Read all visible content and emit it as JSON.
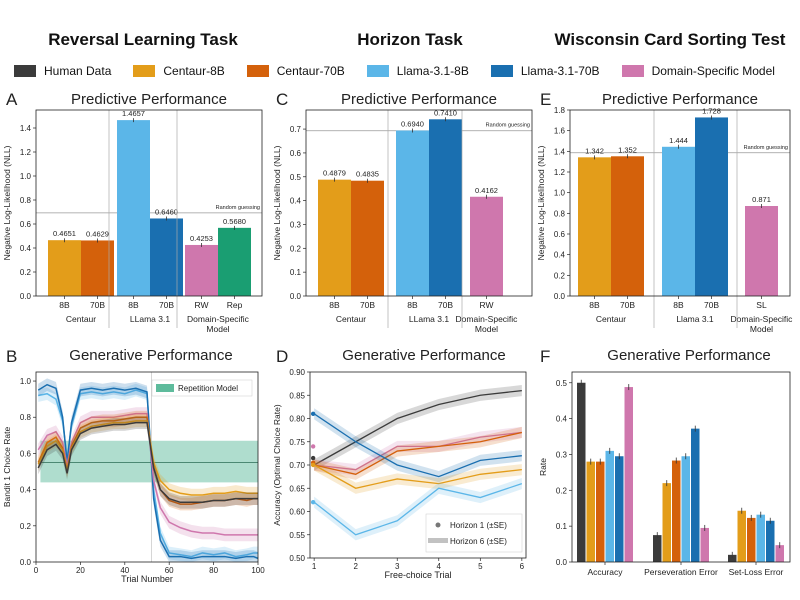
{
  "task_titles": [
    "Reversal Learning Task",
    "Horizon Task",
    "Wisconsin Card Sorting Test"
  ],
  "legend": [
    {
      "label": "Human Data",
      "color": "#3b3b3b"
    },
    {
      "label": "Centaur-8B",
      "color": "#e39d1a"
    },
    {
      "label": "Centaur-70B",
      "color": "#d4610b"
    },
    {
      "label": "Llama-3.1-8B",
      "color": "#5bb6e8"
    },
    {
      "label": "Llama-3.1-70B",
      "color": "#1a6fb0"
    },
    {
      "label": "Domain-Specific Model",
      "color": "#cf77ad"
    }
  ],
  "colors": {
    "human": "#3b3b3b",
    "c8": "#e39d1a",
    "c70": "#d4610b",
    "l8": "#5bb6e8",
    "l70": "#1a6fb0",
    "ds": "#cf77ad",
    "rep": "#1a9e72"
  },
  "chart_data": [
    {
      "panel": "A",
      "type": "bar",
      "title": "Predictive Performance",
      "ylabel": "Negative Log-Likelihood (NLL)",
      "ylim": [
        0,
        1.55
      ],
      "yticks": [
        "0.0",
        "0.2",
        "0.4",
        "0.6",
        "0.8",
        "1.0",
        "1.2",
        "1.4"
      ],
      "random_guessing": {
        "value": 0.693,
        "label": "Random guessing"
      },
      "groups": [
        {
          "name": "Centaur",
          "bars": [
            {
              "tick": "8B",
              "value": 0.4651,
              "label": "0.4651",
              "color": "c8"
            },
            {
              "tick": "70B",
              "value": 0.4629,
              "label": "0.4629",
              "color": "c70"
            }
          ]
        },
        {
          "name": "LLama 3.1",
          "bars": [
            {
              "tick": "8B",
              "value": 1.4657,
              "label": "1.4657",
              "color": "l8"
            },
            {
              "tick": "70B",
              "value": 0.646,
              "label": "0.6460",
              "color": "l70"
            }
          ]
        },
        {
          "name": "Domain-Specific\nModel",
          "bars": [
            {
              "tick": "RW",
              "value": 0.4253,
              "label": "0.4253",
              "color": "ds"
            },
            {
              "tick": "Rep",
              "value": 0.568,
              "label": "0.5680",
              "color": "rep"
            }
          ]
        }
      ]
    },
    {
      "panel": "C",
      "type": "bar",
      "title": "Predictive Performance",
      "ylabel": "Negative Log-Likelihood (NLL)",
      "ylim": [
        0,
        0.78
      ],
      "yticks": [
        "0.0",
        "0.1",
        "0.2",
        "0.3",
        "0.4",
        "0.5",
        "0.6",
        "0.7"
      ],
      "random_guessing": {
        "value": 0.693,
        "label": "Random guessing"
      },
      "groups": [
        {
          "name": "Centaur",
          "bars": [
            {
              "tick": "8B",
              "value": 0.4879,
              "label": "0.4879",
              "color": "c8"
            },
            {
              "tick": "70B",
              "value": 0.4835,
              "label": "0.4835",
              "color": "c70"
            }
          ]
        },
        {
          "name": "LLama 3.1",
          "bars": [
            {
              "tick": "8B",
              "value": 0.694,
              "label": "0.6940",
              "color": "l8"
            },
            {
              "tick": "70B",
              "value": 0.741,
              "label": "0.7410",
              "color": "l70"
            }
          ]
        },
        {
          "name": "Domain-Specific\nModel",
          "bars": [
            {
              "tick": "RW",
              "value": 0.4162,
              "label": "0.4162",
              "color": "ds"
            }
          ]
        }
      ]
    },
    {
      "panel": "E",
      "type": "bar",
      "title": "Predictive Performance",
      "ylabel": "Negative Log-Likelihood (NLL)",
      "ylim": [
        0,
        1.8
      ],
      "yticks": [
        "0.0",
        "0.2",
        "0.4",
        "0.6",
        "0.8",
        "1.0",
        "1.2",
        "1.4",
        "1.6",
        "1.8"
      ],
      "random_guessing": {
        "value": 1.386,
        "label": "Random guessing"
      },
      "groups": [
        {
          "name": "Centaur",
          "bars": [
            {
              "tick": "8B",
              "value": 1.342,
              "label": "1.342",
              "color": "c8"
            },
            {
              "tick": "70B",
              "value": 1.352,
              "label": "1.352",
              "color": "c70"
            }
          ]
        },
        {
          "name": "Llama 3.1",
          "bars": [
            {
              "tick": "8B",
              "value": 1.444,
              "label": "1.444",
              "color": "l8"
            },
            {
              "tick": "70B",
              "value": 1.728,
              "label": "1.728",
              "color": "l70"
            }
          ]
        },
        {
          "name": "Domain-Specific\nModel",
          "bars": [
            {
              "tick": "SL",
              "value": 0.871,
              "label": "0.871",
              "color": "ds"
            }
          ]
        }
      ]
    },
    {
      "panel": "B",
      "type": "line",
      "title": "Generative Performance",
      "xlabel": "Trial Number",
      "ylabel": "Bandit 1 Choice Rate",
      "xlim": [
        0,
        100
      ],
      "ylim": [
        0,
        1.05
      ],
      "xticks": [
        "0",
        "20",
        "40",
        "60",
        "80",
        "100"
      ],
      "yticks": [
        "0.0",
        "0.2",
        "0.4",
        "0.6",
        "0.8",
        "1.0"
      ],
      "repetition_band": {
        "label": "Repetition Model",
        "low": 0.44,
        "mid": 0.55,
        "high": 0.67,
        "x_start": 2,
        "x_end": 100
      },
      "x": [
        1,
        5,
        9,
        12,
        14,
        16,
        20,
        25,
        30,
        35,
        40,
        45,
        50,
        53,
        56,
        60,
        65,
        70,
        75,
        80,
        85,
        90,
        95,
        98,
        100
      ],
      "series": [
        {
          "color": "l8",
          "values": [
            0.92,
            0.93,
            0.9,
            0.78,
            0.57,
            0.75,
            0.93,
            0.94,
            0.93,
            0.94,
            0.93,
            0.95,
            0.93,
            0.4,
            0.16,
            0.05,
            0.04,
            0.03,
            0.05,
            0.04,
            0.05,
            0.03,
            0.04,
            0.05,
            0.05
          ]
        },
        {
          "color": "l70",
          "values": [
            0.95,
            0.98,
            0.96,
            0.8,
            0.55,
            0.77,
            0.95,
            0.96,
            0.95,
            0.96,
            0.95,
            0.96,
            0.94,
            0.35,
            0.12,
            0.03,
            0.03,
            0.02,
            0.03,
            0.03,
            0.03,
            0.02,
            0.03,
            0.03,
            0.02
          ]
        },
        {
          "color": "ds",
          "values": [
            0.62,
            0.7,
            0.72,
            0.66,
            0.53,
            0.66,
            0.77,
            0.8,
            0.8,
            0.8,
            0.81,
            0.82,
            0.82,
            0.45,
            0.3,
            0.22,
            0.19,
            0.17,
            0.16,
            0.16,
            0.15,
            0.15,
            0.15,
            0.15,
            0.15
          ]
        },
        {
          "color": "c70",
          "values": [
            0.55,
            0.66,
            0.69,
            0.63,
            0.51,
            0.64,
            0.74,
            0.77,
            0.78,
            0.78,
            0.79,
            0.8,
            0.8,
            0.52,
            0.4,
            0.34,
            0.32,
            0.32,
            0.33,
            0.34,
            0.34,
            0.35,
            0.34,
            0.35,
            0.35
          ]
        },
        {
          "color": "c8",
          "values": [
            0.54,
            0.64,
            0.67,
            0.62,
            0.5,
            0.63,
            0.72,
            0.75,
            0.76,
            0.77,
            0.77,
            0.78,
            0.78,
            0.55,
            0.45,
            0.4,
            0.38,
            0.37,
            0.37,
            0.38,
            0.38,
            0.39,
            0.38,
            0.38,
            0.38
          ]
        },
        {
          "color": "human",
          "values": [
            0.52,
            0.62,
            0.65,
            0.6,
            0.49,
            0.62,
            0.71,
            0.74,
            0.75,
            0.76,
            0.76,
            0.77,
            0.77,
            0.52,
            0.4,
            0.35,
            0.33,
            0.33,
            0.33,
            0.34,
            0.34,
            0.35,
            0.35,
            0.35,
            0.35
          ]
        }
      ]
    },
    {
      "panel": "D",
      "type": "line",
      "title": "Generative Performance",
      "xlabel": "Free-choice Trial",
      "ylabel": "Accuracy (Optimal Choice Rate)",
      "xlim": [
        0.9,
        6.1
      ],
      "ylim": [
        0.5,
        0.9
      ],
      "xticks": [
        "1",
        "2",
        "3",
        "4",
        "5",
        "6"
      ],
      "yticks": [
        "0.50",
        "0.55",
        "0.60",
        "0.65",
        "0.70",
        "0.75",
        "0.80",
        "0.85",
        "0.90"
      ],
      "legend_entries": [
        "Horizon 1 (±SE)",
        "Horizon 6 (±SE)"
      ],
      "horizon1_points": [
        {
          "color": "l70",
          "value": 0.81
        },
        {
          "color": "ds",
          "value": 0.74
        },
        {
          "color": "human",
          "value": 0.715
        },
        {
          "color": "c70",
          "value": 0.705
        },
        {
          "color": "c8",
          "value": 0.7
        },
        {
          "color": "l8",
          "value": 0.62
        }
      ],
      "x": [
        1,
        2,
        3,
        4,
        5,
        6
      ],
      "series": [
        {
          "color": "human",
          "values": [
            0.7,
            0.75,
            0.8,
            0.83,
            0.85,
            0.86
          ]
        },
        {
          "color": "ds",
          "values": [
            0.7,
            0.69,
            0.74,
            0.74,
            0.76,
            0.77
          ]
        },
        {
          "color": "c70",
          "values": [
            0.7,
            0.68,
            0.73,
            0.74,
            0.75,
            0.77
          ]
        },
        {
          "color": "l70",
          "values": [
            0.81,
            0.75,
            0.7,
            0.675,
            0.71,
            0.72
          ]
        },
        {
          "color": "c8",
          "values": [
            0.7,
            0.65,
            0.67,
            0.66,
            0.68,
            0.69
          ]
        },
        {
          "color": "l8",
          "values": [
            0.62,
            0.55,
            0.58,
            0.65,
            0.63,
            0.66
          ]
        }
      ]
    },
    {
      "panel": "F",
      "type": "bar",
      "title": "Generative Performance",
      "ylabel": "Rate",
      "ylim": [
        0,
        0.53
      ],
      "yticks": [
        "0.0",
        "0.1",
        "0.2",
        "0.3",
        "0.4",
        "0.5"
      ],
      "categories": [
        "Accuracy",
        "Perseveration Error",
        "Set-Loss Error"
      ],
      "series_order": [
        "human",
        "c8",
        "c70",
        "l8",
        "l70",
        "ds"
      ],
      "values": [
        [
          0.5,
          0.28,
          0.28,
          0.31,
          0.295,
          0.488
        ],
        [
          0.075,
          0.22,
          0.283,
          0.295,
          0.372,
          0.095
        ],
        [
          0.02,
          0.143,
          0.123,
          0.132,
          0.115,
          0.047
        ]
      ]
    }
  ],
  "panel_letters": [
    "A",
    "C",
    "E",
    "B",
    "D",
    "F"
  ]
}
